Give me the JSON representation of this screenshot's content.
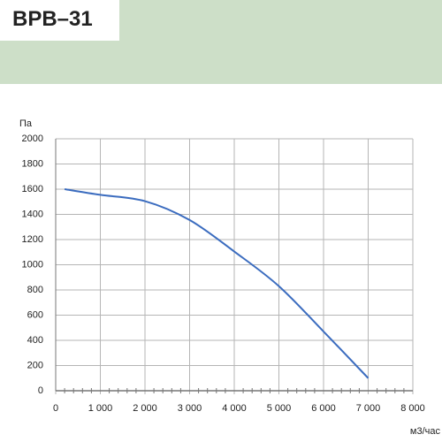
{
  "chart_data": {
    "type": "line",
    "title": "ВРВ–31",
    "ylabel": "Па",
    "xlabel": "м3/час",
    "x": [
      200,
      1000,
      2000,
      3000,
      4000,
      5000,
      6000,
      7000
    ],
    "values": [
      1600,
      1555,
      1505,
      1355,
      1105,
      830,
      470,
      100
    ],
    "color": "#3b6cbf",
    "xlim": [
      0,
      8000
    ],
    "xticks": [
      0,
      {
        "value": 1000,
        "label": "1 000"
      },
      {
        "value": 2000,
        "label": "2 000"
      },
      {
        "value": 3000,
        "label": "3 000"
      },
      {
        "value": 4000,
        "label": "4 000"
      },
      {
        "value": 5000,
        "label": "5 000"
      },
      {
        "value": 6000,
        "label": "6 000"
      },
      {
        "value": 7000,
        "label": "7 000"
      },
      {
        "value": 8000,
        "label": "8 000"
      }
    ],
    "xminorticks": [
      200,
      400,
      600,
      800,
      1200,
      1400,
      1600,
      1800,
      2200,
      2400,
      2600,
      2800,
      3200,
      3400,
      3600,
      3800,
      4200,
      4400,
      4600,
      4800,
      5200,
      5400,
      5600,
      5800,
      6200,
      6400,
      6600,
      6800,
      7200,
      7400,
      7600,
      7800
    ],
    "ylim": [
      0,
      2000
    ],
    "yticks": [
      0,
      200,
      400,
      600,
      800,
      1000,
      1200,
      1400,
      1600,
      1800,
      2000
    ],
    "grid": true
  }
}
